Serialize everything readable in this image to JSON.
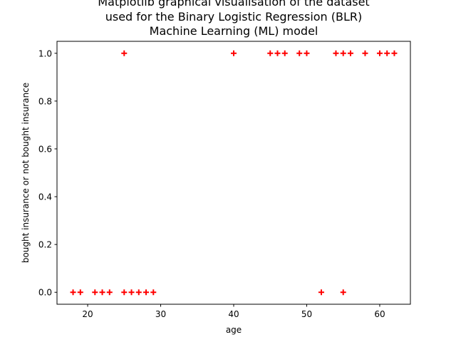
{
  "chart_data": {
    "type": "scatter",
    "title_lines": [
      "Matplotlib graphical visualisation of the dataset",
      "used for the Binary Logistic Regression (BLR)",
      "Machine Learning (ML) model"
    ],
    "xlabel": "age",
    "ylabel": "bought insurance or not bought insurance",
    "xlim": [
      15.8,
      64.2
    ],
    "ylim": [
      -0.05,
      1.05
    ],
    "xticks": [
      20,
      30,
      40,
      50,
      60
    ],
    "xtick_labels": [
      "20",
      "30",
      "40",
      "50",
      "60"
    ],
    "yticks": [
      0.0,
      0.2,
      0.4,
      0.6,
      0.8,
      1.0
    ],
    "ytick_labels": [
      "0.0",
      "0.2",
      "0.4",
      "0.6",
      "0.8",
      "1.0"
    ],
    "marker": "+",
    "marker_color": "#ff0000",
    "grid": false,
    "points": [
      {
        "x": 18,
        "y": 0
      },
      {
        "x": 19,
        "y": 0
      },
      {
        "x": 21,
        "y": 0
      },
      {
        "x": 22,
        "y": 0
      },
      {
        "x": 23,
        "y": 0
      },
      {
        "x": 25,
        "y": 0
      },
      {
        "x": 26,
        "y": 0
      },
      {
        "x": 27,
        "y": 0
      },
      {
        "x": 28,
        "y": 0
      },
      {
        "x": 29,
        "y": 0
      },
      {
        "x": 52,
        "y": 0
      },
      {
        "x": 55,
        "y": 0
      },
      {
        "x": 25,
        "y": 1
      },
      {
        "x": 40,
        "y": 1
      },
      {
        "x": 45,
        "y": 1
      },
      {
        "x": 46,
        "y": 1
      },
      {
        "x": 47,
        "y": 1
      },
      {
        "x": 49,
        "y": 1
      },
      {
        "x": 50,
        "y": 1
      },
      {
        "x": 54,
        "y": 1
      },
      {
        "x": 55,
        "y": 1
      },
      {
        "x": 56,
        "y": 1
      },
      {
        "x": 58,
        "y": 1
      },
      {
        "x": 60,
        "y": 1
      },
      {
        "x": 61,
        "y": 1
      },
      {
        "x": 62,
        "y": 1
      }
    ]
  }
}
